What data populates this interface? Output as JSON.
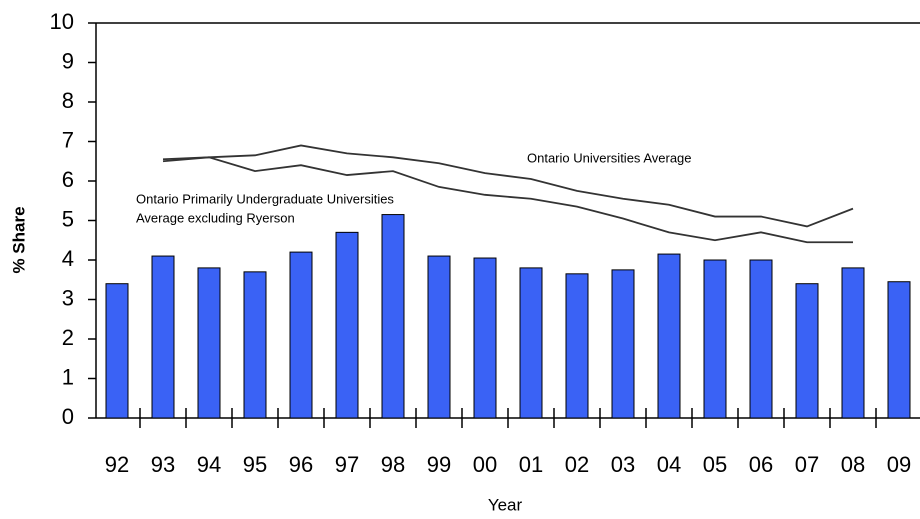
{
  "chart_data": {
    "type": "bar",
    "x_label": "Year",
    "y_label": "% Share",
    "categories": [
      "92",
      "93",
      "94",
      "95",
      "96",
      "97",
      "98",
      "99",
      "00",
      "01",
      "02",
      "03",
      "04",
      "05",
      "06",
      "07",
      "08",
      "09"
    ],
    "values": [
      3.4,
      4.1,
      3.8,
      3.7,
      4.2,
      4.7,
      5.15,
      4.1,
      4.05,
      3.8,
      3.65,
      3.75,
      4.15,
      4.0,
      4.0,
      3.4,
      3.8,
      3.45
    ],
    "color": "#3a62f5",
    "lines": [
      {
        "color": "#333333",
        "values": [
          null,
          6.55,
          6.6,
          6.65,
          6.9,
          6.7,
          6.6,
          6.45,
          6.2,
          6.05,
          5.75,
          5.55,
          5.4,
          5.1,
          5.1,
          4.85,
          5.3,
          null
        ]
      },
      {
        "color": "#333333",
        "values": [
          null,
          6.5,
          6.6,
          6.25,
          6.4,
          6.15,
          6.25,
          5.85,
          5.65,
          5.55,
          5.35,
          5.05,
          4.7,
          4.5,
          4.7,
          4.45,
          4.45,
          null
        ]
      }
    ],
    "annotations": [
      "Ontario Universities Average",
      "Ontario Primarily Undergraduate Universities",
      "Average excluding Ryerson"
    ],
    "ylim": [
      0,
      10
    ],
    "yticks": [
      0,
      1,
      2,
      3,
      4,
      5,
      6,
      7,
      8,
      9,
      10
    ]
  }
}
